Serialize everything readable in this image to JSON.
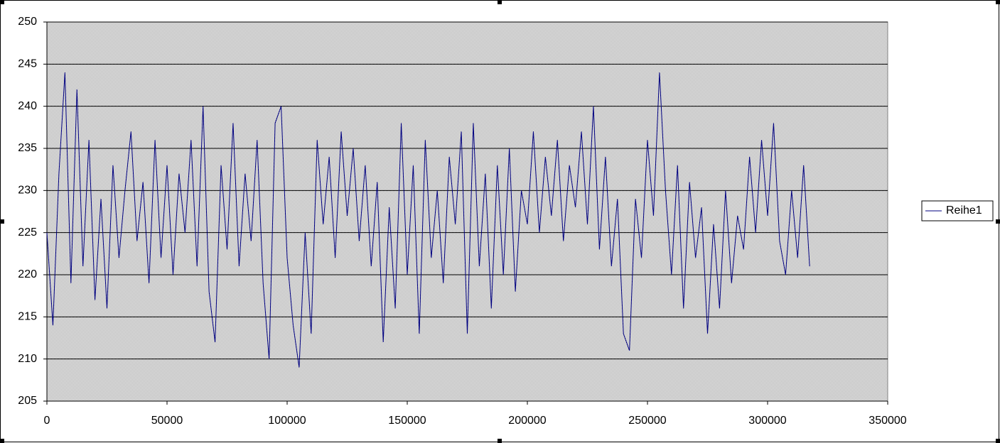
{
  "chart_data": {
    "type": "line",
    "x": [
      0,
      2500,
      5000,
      7500,
      10000,
      12500,
      15000,
      17500,
      20000,
      22500,
      25000,
      27500,
      30000,
      32500,
      35000,
      37500,
      40000,
      42500,
      45000,
      47500,
      50000,
      52500,
      55000,
      57500,
      60000,
      62500,
      65000,
      67500,
      70000,
      72500,
      75000,
      77500,
      80000,
      82500,
      85000,
      87500,
      90000,
      92500,
      95000,
      97500,
      100000,
      102500,
      105000,
      107500,
      110000,
      112500,
      115000,
      117500,
      120000,
      122500,
      125000,
      127500,
      130000,
      132500,
      135000,
      137500,
      140000,
      142500,
      145000,
      147500,
      150000,
      152500,
      155000,
      157500,
      160000,
      162500,
      165000,
      167500,
      170000,
      172500,
      175000,
      177500,
      180000,
      182500,
      185000,
      187500,
      190000,
      192500,
      195000,
      197500,
      200000,
      202500,
      205000,
      207500,
      210000,
      212500,
      215000,
      217500,
      220000,
      222500,
      225000,
      227500,
      230000,
      232500,
      235000,
      237500,
      240000,
      242500,
      245000,
      247500,
      250000,
      252500,
      255000,
      257500,
      260000,
      262500,
      265000,
      267500,
      270000,
      272500,
      275000,
      277500,
      280000,
      282500,
      285000,
      287500,
      290000,
      292500,
      295000,
      297500,
      300000,
      302500,
      305000,
      307500,
      310000,
      312500,
      315000,
      317500
    ],
    "series": [
      {
        "name": "Reihe1",
        "color": "#000080",
        "values": [
          225,
          214,
          232,
          244,
          219,
          242,
          221,
          236,
          217,
          229,
          216,
          233,
          222,
          230,
          237,
          224,
          231,
          219,
          236,
          222,
          233,
          220,
          232,
          225,
          236,
          221,
          240,
          218,
          212,
          233,
          223,
          238,
          221,
          232,
          224,
          236,
          219,
          210,
          238,
          240,
          222,
          214,
          209,
          225,
          213,
          236,
          226,
          234,
          222,
          237,
          227,
          235,
          224,
          233,
          221,
          231,
          212,
          228,
          216,
          238,
          220,
          233,
          213,
          236,
          222,
          230,
          219,
          234,
          226,
          237,
          213,
          238,
          221,
          232,
          216,
          233,
          220,
          235,
          218,
          230,
          226,
          237,
          225,
          234,
          227,
          236,
          224,
          233,
          228,
          237,
          226,
          240,
          223,
          234,
          221,
          229,
          213,
          211,
          229,
          222,
          236,
          227,
          244,
          230,
          220,
          233,
          216,
          231,
          222,
          228,
          213,
          226,
          216,
          230,
          219,
          227,
          223,
          234,
          225,
          236,
          227,
          238,
          224,
          220,
          230,
          222,
          233,
          221
        ]
      }
    ],
    "xlim": [
      0,
      350000
    ],
    "xticks": [
      0,
      50000,
      100000,
      150000,
      200000,
      250000,
      300000,
      350000
    ],
    "ylim": [
      205,
      250
    ],
    "yticks": [
      205,
      210,
      215,
      220,
      225,
      230,
      235,
      240,
      245,
      250
    ],
    "grid": true,
    "legend": "right"
  }
}
